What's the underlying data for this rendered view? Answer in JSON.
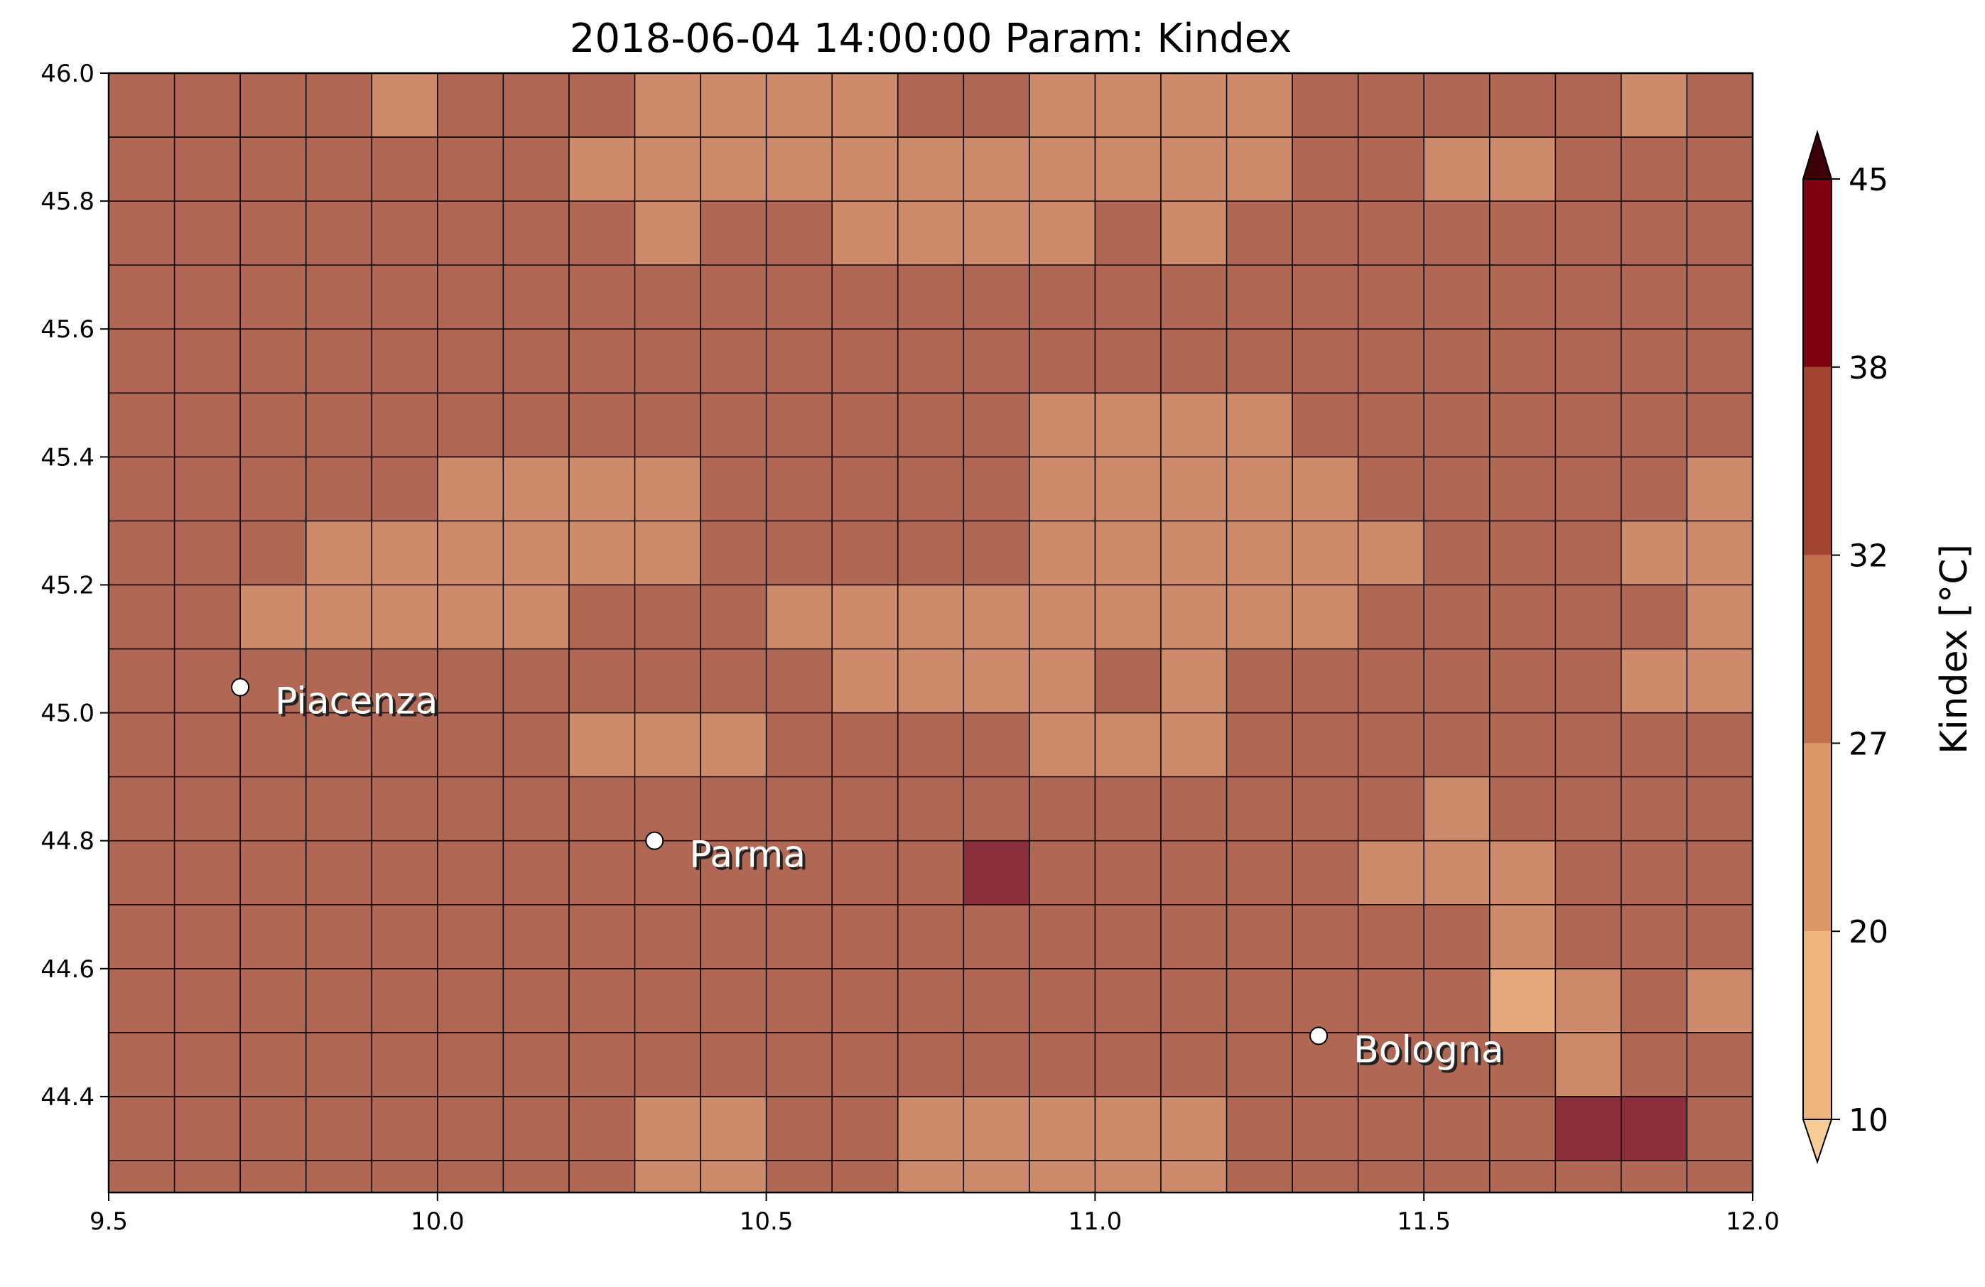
{
  "chart_data": {
    "type": "heatmap",
    "title": "2018-06-04 14:00:00 Param: Kindex",
    "xlim": [
      9.5,
      12.0
    ],
    "ylim": [
      44.25,
      46.0
    ],
    "cell_size": 0.1,
    "x_ticks": [
      9.5,
      10.0,
      10.5,
      11.0,
      11.5,
      12.0
    ],
    "x_tick_labels": [
      "9.5",
      "10.0",
      "10.5",
      "11.0",
      "11.5",
      "12.0"
    ],
    "y_ticks": [
      44.4,
      44.6,
      44.8,
      45.0,
      45.2,
      45.4,
      45.6,
      45.8,
      46.0
    ],
    "y_tick_labels": [
      "44.4",
      "44.6",
      "44.8",
      "45.0",
      "45.2",
      "45.4",
      "45.6",
      "45.8",
      "46.0"
    ],
    "legend_note": "grid rows listed from north (top) to south (bottom); values are colour classes 0-4",
    "grid": [
      "3333233322223322223333323",
      "3333333222222222223322333",
      "3333333323322223233333333",
      "3333333333333333333333333",
      "3333333333333333333333333",
      "3333333333333322223333333",
      "3333322223333322222333332",
      "3332222223333322222233322",
      "3322222333222222222333332",
      "3333333333322223233333322",
      "3333333222333322233333333",
      "3333333333333333333323333",
      "3333333333333433333222333",
      "3333333333333333333332333",
      "3333333333333333333331232",
      "3333333333333333333333233",
      "3333333322332222233333443",
      "3333333322332222233333333"
    ],
    "class_colors": [
      "#e4a87c",
      "#e4a87c",
      "#cd8b6b",
      "#b06753",
      "#8c2f3c"
    ],
    "cities": [
      {
        "name": "Piacenza",
        "lon": 9.7,
        "lat": 45.04
      },
      {
        "name": "Parma",
        "lon": 10.33,
        "lat": 44.8
      },
      {
        "name": "Bologna",
        "lon": 11.34,
        "lat": 44.495
      }
    ],
    "colorbar": {
      "label": "Kindex [°C]",
      "ticks": [
        "10",
        "20",
        "27",
        "32",
        "38",
        "45"
      ],
      "bands": [
        {
          "from": 10,
          "to": 20,
          "color": "#edb47e"
        },
        {
          "from": 20,
          "to": 27,
          "color": "#d99766"
        },
        {
          "from": 27,
          "to": 32,
          "color": "#c1704c"
        },
        {
          "from": 32,
          "to": 38,
          "color": "#a2442f"
        },
        {
          "from": 38,
          "to": 45,
          "color": "#7c000e"
        }
      ],
      "extend_low_color": "#f7cd95",
      "extend_high_color": "#3d0006"
    }
  }
}
